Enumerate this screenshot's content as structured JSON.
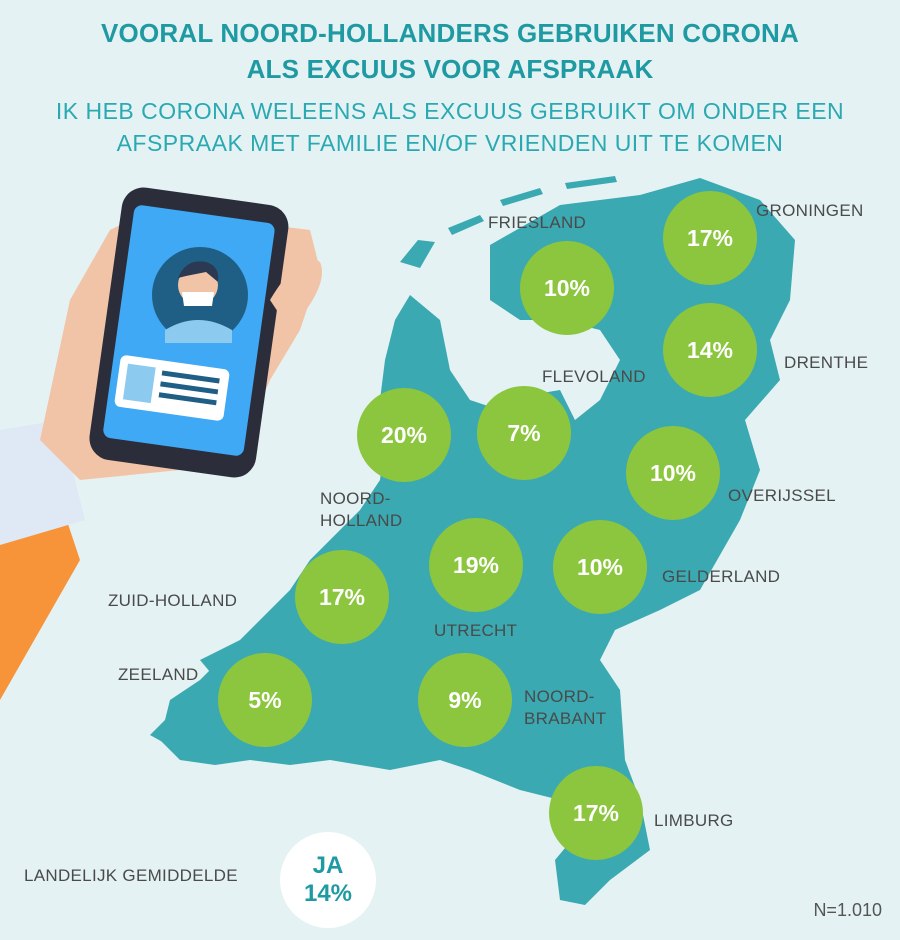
{
  "title_line1": "VOORAL NOORD-HOLLANDERS GEBRUIKEN CORONA",
  "title_line2": "ALS EXCUUS VOOR AFSPRAAK",
  "subtitle_line1": "IK HEB CORONA WELEENS ALS EXCUUS GEBRUIKT OM ONDER EEN",
  "subtitle_line2": "AFSPRAAK MET FAMILIE EN/OF VRIENDEN UIT TE KOMEN",
  "average": {
    "label": "LANDELIJK GEMIDDELDE",
    "answer": "JA",
    "value_text": "14%"
  },
  "sample_size": "N=1.010",
  "colors": {
    "bubble": "#8cc63f",
    "map": "#3aa9b1",
    "title": "#1f9aa3",
    "background": "#e4f2f3"
  },
  "chart_data": {
    "type": "map",
    "unit": "%",
    "regions": [
      {
        "name": "GRONINGEN",
        "label_lines": [
          "GRONINGEN"
        ],
        "value": 17,
        "value_text": "17%"
      },
      {
        "name": "FRIESLAND",
        "label_lines": [
          "FRIESLAND"
        ],
        "value": 10,
        "value_text": "10%"
      },
      {
        "name": "DRENTHE",
        "label_lines": [
          "DRENTHE"
        ],
        "value": 14,
        "value_text": "14%"
      },
      {
        "name": "FLEVOLAND",
        "label_lines": [
          "FLEVOLAND"
        ],
        "value": 7,
        "value_text": "7%"
      },
      {
        "name": "NOORD-HOLLAND",
        "label_lines": [
          "NOORD-",
          "HOLLAND"
        ],
        "value": 20,
        "value_text": "20%"
      },
      {
        "name": "OVERIJSSEL",
        "label_lines": [
          "OVERIJSSEL"
        ],
        "value": 10,
        "value_text": "10%"
      },
      {
        "name": "GELDERLAND",
        "label_lines": [
          "GELDERLAND"
        ],
        "value": 10,
        "value_text": "10%"
      },
      {
        "name": "UTRECHT",
        "label_lines": [
          "UTRECHT"
        ],
        "value": 19,
        "value_text": "19%"
      },
      {
        "name": "ZUID-HOLLAND",
        "label_lines": [
          "ZUID-HOLLAND"
        ],
        "value": 17,
        "value_text": "17%"
      },
      {
        "name": "ZEELAND",
        "label_lines": [
          "ZEELAND"
        ],
        "value": 5,
        "value_text": "5%"
      },
      {
        "name": "NOORD-BRABANT",
        "label_lines": [
          "NOORD-",
          "BRABANT"
        ],
        "value": 9,
        "value_text": "9%"
      },
      {
        "name": "LIMBURG",
        "label_lines": [
          "LIMBURG"
        ],
        "value": 17,
        "value_text": "17%"
      }
    ]
  }
}
